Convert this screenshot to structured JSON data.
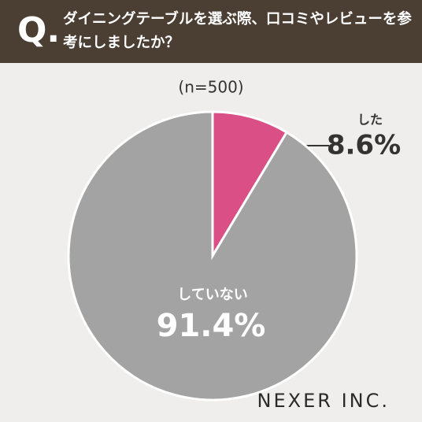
{
  "header": {
    "q_mark": "Q.",
    "title": "ダイニングテーブルを選ぶ際、口コミやレビューを参考にしましたか？"
  },
  "chart_data": {
    "type": "pie",
    "subtitle": "(n=500)",
    "categories": [
      "した",
      "していない"
    ],
    "values": [
      8.6,
      91.4
    ],
    "value_labels": [
      "8.6%",
      "91.4%"
    ],
    "colors": [
      "#d94f86",
      "#a3a3a3"
    ]
  },
  "brand": "NEXER INC."
}
